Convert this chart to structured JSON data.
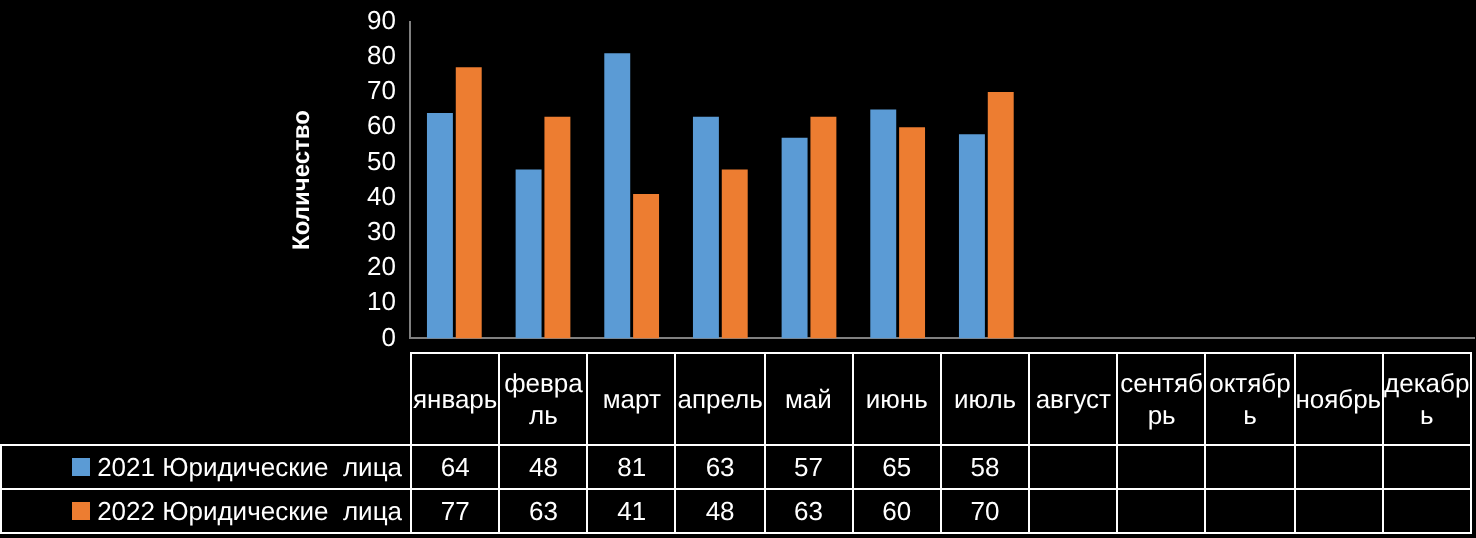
{
  "chart_data": {
    "type": "bar",
    "ylabel": "Количество",
    "categories": [
      "январь",
      "февраль",
      "март",
      "апрель",
      "май",
      "июнь",
      "июль",
      "август",
      "сентябрь",
      "октябрь",
      "ноябрь",
      "декабрь"
    ],
    "series": [
      {
        "name": "2021 Юридические  лица",
        "color": "#5b9bd5",
        "values": [
          64,
          48,
          81,
          63,
          57,
          65,
          58,
          null,
          null,
          null,
          null,
          null
        ]
      },
      {
        "name": "2022 Юридические  лица",
        "color": "#ed7d31",
        "values": [
          77,
          63,
          41,
          48,
          63,
          60,
          70,
          null,
          null,
          null,
          null,
          null
        ]
      }
    ],
    "ylim": [
      0,
      90
    ],
    "yticks": [
      0,
      10,
      20,
      30,
      40,
      50,
      60,
      70,
      80,
      90
    ],
    "grid": false,
    "legend": "bottom",
    "data_labels": true
  }
}
